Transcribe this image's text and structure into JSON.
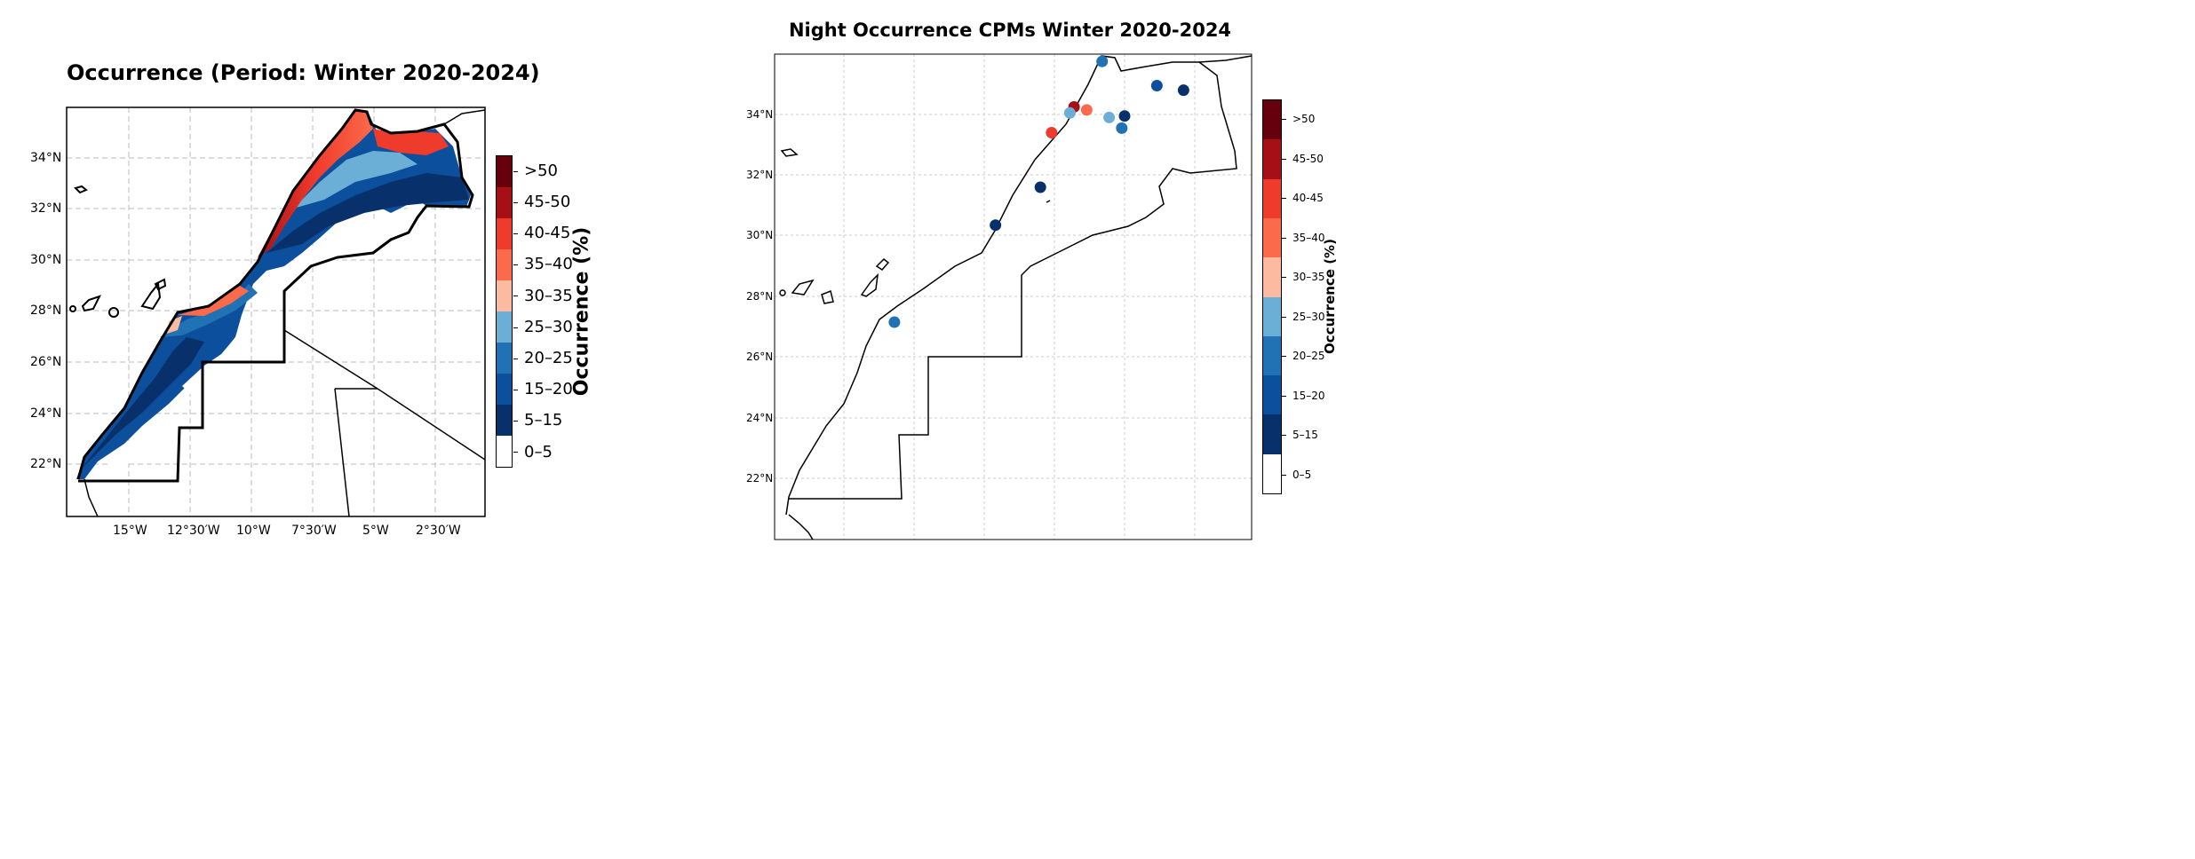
{
  "left_map": {
    "title": "Occurrence (Period: Winter 2020-2024)",
    "lat_labels": [
      "34°N",
      "32°N",
      "30°N",
      "28°N",
      "26°N",
      "24°N",
      "22°N"
    ],
    "lon_labels": [
      "15°W",
      "12°30′W",
      "10°W",
      "7°30′W",
      "5°W",
      "2°30′W"
    ],
    "colorbar": {
      "title": "Occurrence (%)",
      "classes": [
        "0–5",
        "5–15",
        "15–20",
        "20–25",
        "25–30",
        "30–35",
        "35–40",
        "40-45",
        "45-50",
        ">50"
      ]
    }
  },
  "right_map": {
    "title": "Night Occurrence CPMs Winter 2020-2024",
    "lat_labels": [
      "34°N",
      "32°N",
      "30°N",
      "28°N",
      "26°N",
      "24°N",
      "22°N"
    ],
    "colorbar": {
      "title": "Occurrence (%)",
      "classes": [
        "0–5",
        "5–15",
        "15–20",
        "20–25",
        "25–30",
        "30–35",
        "35–40",
        "40-45",
        "45-50",
        ">50"
      ]
    },
    "stations": [
      {
        "lon": -5.8,
        "lat": 35.75,
        "class": "20–25"
      },
      {
        "lon": -3.85,
        "lat": 34.95,
        "class": "15–20"
      },
      {
        "lon": -2.9,
        "lat": 34.8,
        "class": "5–15"
      },
      {
        "lon": -6.8,
        "lat": 34.25,
        "class": "45-50"
      },
      {
        "lon": -6.95,
        "lat": 34.05,
        "class": "25–30"
      },
      {
        "lon": -6.35,
        "lat": 34.15,
        "class": "35–40"
      },
      {
        "lon": -5.55,
        "lat": 33.9,
        "class": "25–30"
      },
      {
        "lon": -5.0,
        "lat": 33.95,
        "class": "5–15"
      },
      {
        "lon": -5.1,
        "lat": 33.55,
        "class": "20–25"
      },
      {
        "lon": -7.6,
        "lat": 33.4,
        "class": "40-45"
      },
      {
        "lon": -8.0,
        "lat": 31.6,
        "class": "5–15"
      },
      {
        "lon": -9.6,
        "lat": 30.35,
        "class": "5–15"
      },
      {
        "lon": -13.2,
        "lat": 27.15,
        "class": "20–25"
      }
    ]
  },
  "colors": {
    "classes": [
      "#ffffff",
      "#08306b",
      "#0c4f9c",
      "#2171b5",
      "#6baed6",
      "#fcbba1",
      "#fb6a4a",
      "#ef3b2c",
      "#a50f15",
      "#67000d"
    ]
  }
}
